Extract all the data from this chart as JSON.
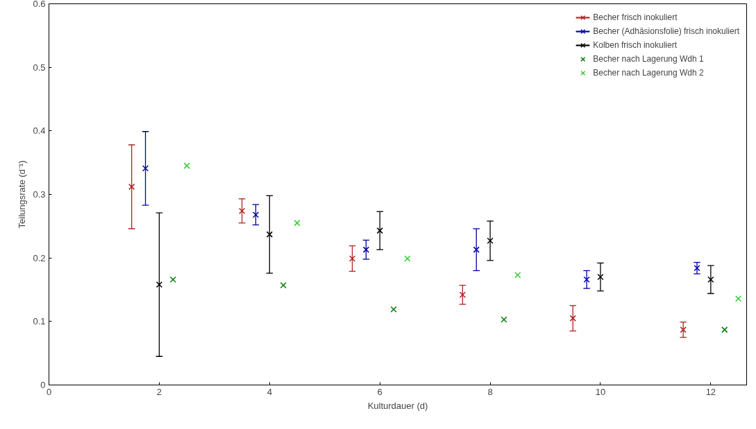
{
  "chart_data": {
    "type": "scatter",
    "xlabel": "Kulturdauer (d)",
    "ylabel": "Teilungsrate (d⁻¹)",
    "xlim": [
      0,
      12.65
    ],
    "ylim": [
      0,
      0.6
    ],
    "xticks": [
      0,
      2,
      4,
      6,
      8,
      10,
      12
    ],
    "yticks": [
      0,
      0.1,
      0.2,
      0.3,
      0.4,
      0.5,
      0.6
    ],
    "grid": false,
    "legend": "top right",
    "marker": "cross",
    "series": [
      {
        "name": "Becher frisch inokuliert",
        "color": "#b22222",
        "x": [
          1.5,
          3.5,
          5.5,
          7.5,
          9.5,
          11.5
        ],
        "values": [
          0.312,
          0.274,
          0.199,
          0.142,
          0.105,
          0.087
        ],
        "errors": [
          0.066,
          0.019,
          0.02,
          0.015,
          0.02,
          0.012
        ]
      },
      {
        "name": "Becher (Adhäsionsfolie) frisch inokuliert",
        "color": "#0000a0",
        "x": [
          1.75,
          3.75,
          5.75,
          7.75,
          9.75,
          11.75
        ],
        "values": [
          0.341,
          0.268,
          0.213,
          0.213,
          0.166,
          0.184
        ],
        "errors": [
          0.058,
          0.016,
          0.015,
          0.033,
          0.014,
          0.009
        ]
      },
      {
        "name": "Kolben frisch inokuliert",
        "color": "#000000",
        "x": [
          2,
          4,
          6,
          8,
          10,
          12
        ],
        "values": [
          0.158,
          0.237,
          0.243,
          0.227,
          0.17,
          0.166
        ],
        "errors": [
          0.113,
          0.061,
          0.03,
          0.031,
          0.022,
          0.022
        ]
      },
      {
        "name": "Becher nach Lagerung Wdh 1",
        "color": "#007a00",
        "x": [
          2.25,
          4.25,
          6.25,
          8.25,
          12.25
        ],
        "values": [
          0.166,
          0.157,
          0.119,
          0.103,
          0.087
        ]
      },
      {
        "name": "Becher nach Lagerung Wdh 2",
        "color": "#33cc33",
        "x": [
          2.5,
          4.5,
          6.5,
          8.5,
          12.5
        ],
        "values": [
          0.345,
          0.255,
          0.199,
          0.173,
          0.136
        ]
      }
    ]
  }
}
